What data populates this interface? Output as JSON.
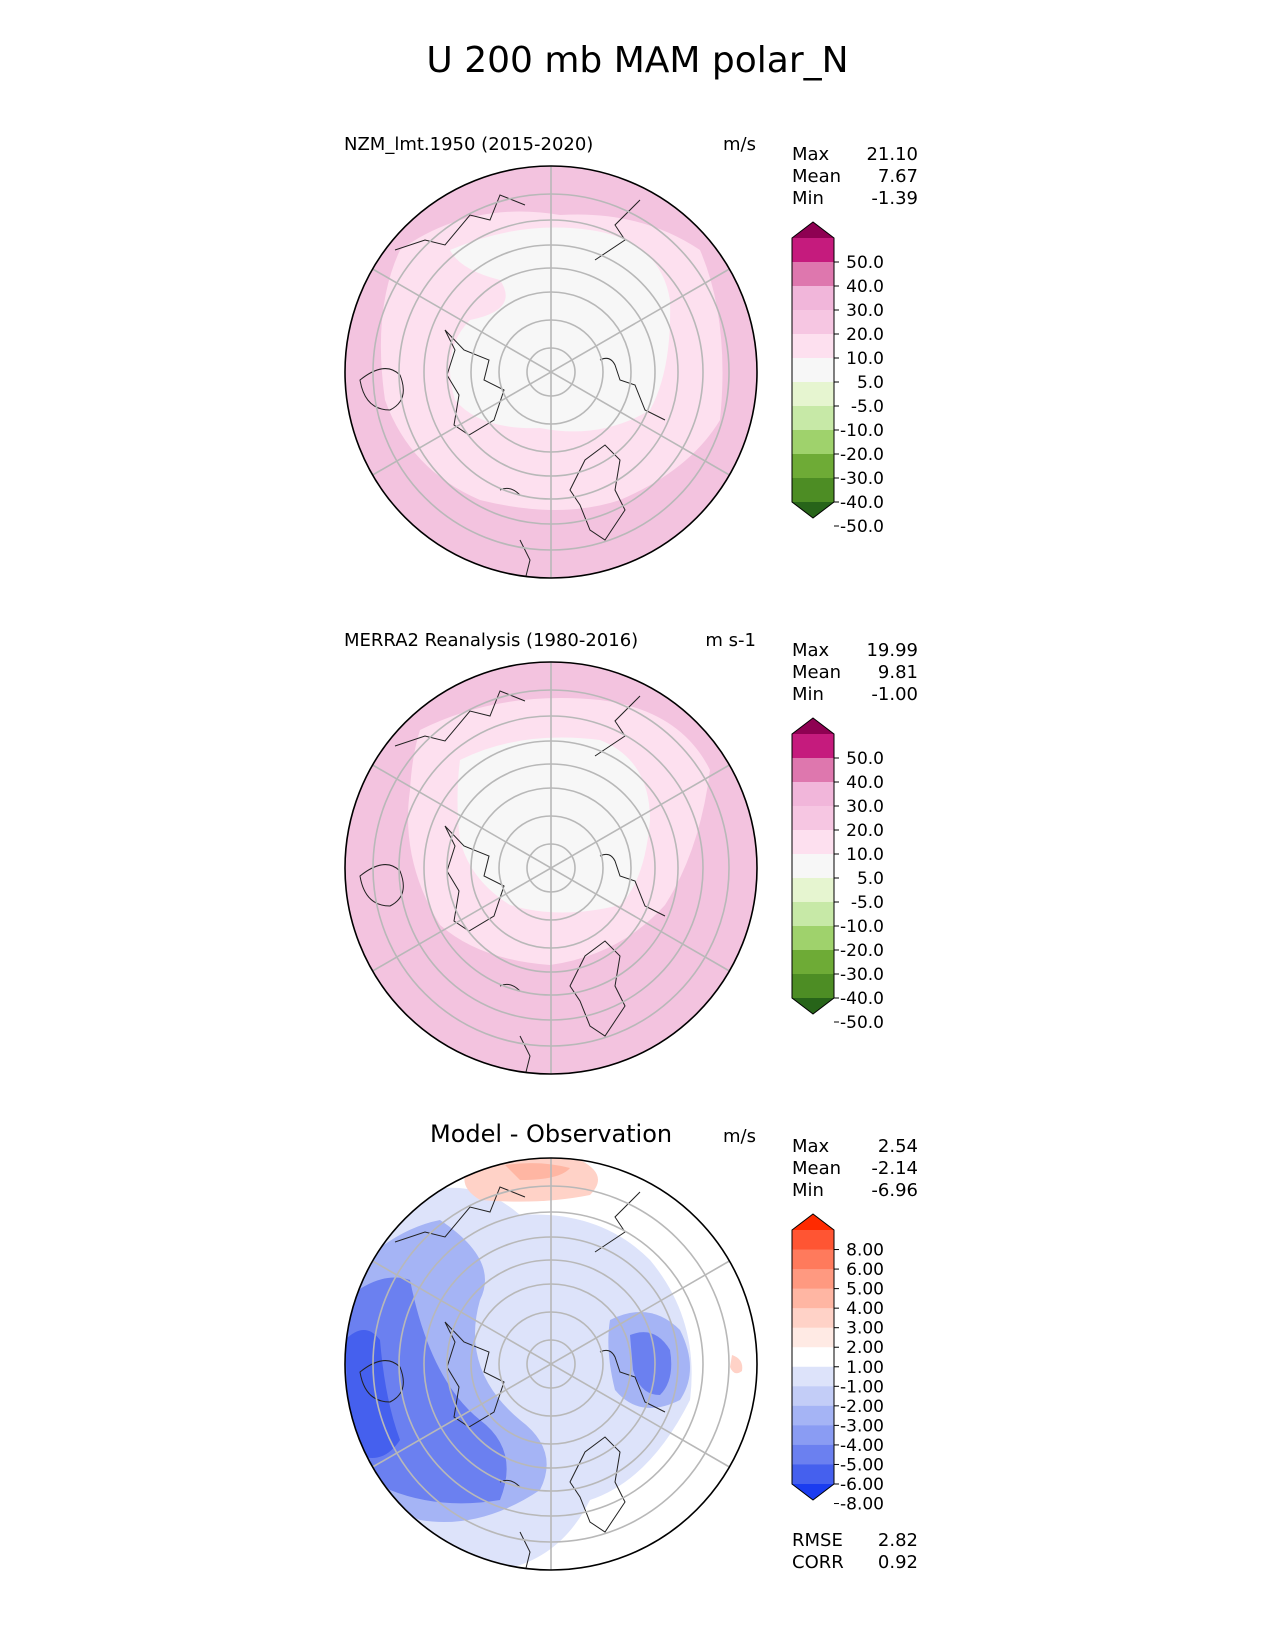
{
  "title": "U 200 mb MAM polar_N",
  "panels": [
    {
      "title": "NZM_lmt.1950 (2015-2020)",
      "units": "m/s",
      "stats": [
        {
          "label": "Max",
          "value": "21.10"
        },
        {
          "label": "Mean",
          "value": "7.67"
        },
        {
          "label": "Min",
          "value": "-1.39"
        }
      ],
      "colorbar": {
        "labels": [
          "50.0",
          "40.0",
          "30.0",
          "20.0",
          "10.0",
          "5.0",
          "-5.0",
          "-10.0",
          "-20.0",
          "-30.0",
          "-40.0",
          "-50.0"
        ],
        "colors": [
          "#8e0152",
          "#c51b7d",
          "#de77ae",
          "#f1b6da",
          "#f6c6e2",
          "#fde0ef",
          "#f7f7f7",
          "#e6f5d0",
          "#c7e9a7",
          "#9fd26c",
          "#6eab36",
          "#4d8d24",
          "#276419"
        ]
      }
    },
    {
      "title": "MERRA2 Reanalysis (1980-2016)",
      "units": "m s-1",
      "stats": [
        {
          "label": "Max",
          "value": "19.99"
        },
        {
          "label": "Mean",
          "value": "9.81"
        },
        {
          "label": "Min",
          "value": "-1.00"
        }
      ],
      "colorbar": {
        "labels": [
          "50.0",
          "40.0",
          "30.0",
          "20.0",
          "10.0",
          "5.0",
          "-5.0",
          "-10.0",
          "-20.0",
          "-30.0",
          "-40.0",
          "-50.0"
        ],
        "colors": [
          "#8e0152",
          "#c51b7d",
          "#de77ae",
          "#f1b6da",
          "#f6c6e2",
          "#fde0ef",
          "#f7f7f7",
          "#e6f5d0",
          "#c7e9a7",
          "#9fd26c",
          "#6eab36",
          "#4d8d24",
          "#276419"
        ]
      }
    },
    {
      "title": "Model - Observation",
      "units": "m/s",
      "stats": [
        {
          "label": "Max",
          "value": "2.54"
        },
        {
          "label": "Mean",
          "value": "-2.14"
        },
        {
          "label": "Min",
          "value": "-6.96"
        }
      ],
      "extra_stats": [
        {
          "label": "RMSE",
          "value": "2.82"
        },
        {
          "label": "CORR",
          "value": "0.92"
        }
      ],
      "colorbar": {
        "labels": [
          "8.00",
          "6.00",
          "5.00",
          "4.00",
          "3.00",
          "2.00",
          "1.00",
          "-1.00",
          "-2.00",
          "-3.00",
          "-4.00",
          "-5.00",
          "-6.00",
          "-8.00"
        ],
        "colors": [
          "#ff2a00",
          "#ff5533",
          "#ff7a5c",
          "#ff9980",
          "#ffb6a3",
          "#ffd2c7",
          "#ffeae4",
          "#ffffff",
          "#dde3fa",
          "#c3cdf7",
          "#a5b4f5",
          "#8a9cf3",
          "#6b80f0",
          "#4560ee",
          "#1a3cf0"
        ]
      }
    }
  ]
}
